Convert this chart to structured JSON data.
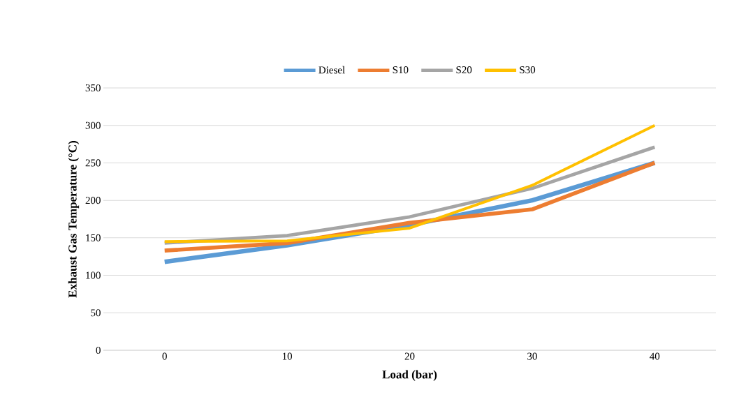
{
  "chart_data": {
    "type": "line",
    "xlabel": "Load (bar)",
    "ylabel": "Exhaust Gas Temperature (°C)",
    "categories": [
      "0",
      "10",
      "20",
      "30",
      "40"
    ],
    "series": [
      {
        "name": "Diesel",
        "color": "#5b9bd5",
        "values": [
          118,
          140,
          167,
          200,
          250
        ]
      },
      {
        "name": "S10",
        "color": "#ed7d31",
        "values": [
          133,
          143,
          170,
          188,
          250
        ]
      },
      {
        "name": "S20",
        "color": "#a5a5a5",
        "values": [
          143,
          153,
          178,
          216,
          271
        ]
      },
      {
        "name": "S30",
        "color": "#ffc000",
        "values": [
          145,
          146,
          163,
          220,
          300
        ]
      }
    ],
    "ylim": [
      0,
      350
    ],
    "yticks": [
      0,
      50,
      100,
      150,
      200,
      250,
      300,
      350
    ],
    "grid": "y",
    "legend": "top",
    "marker": "none",
    "line_style": "solid"
  }
}
